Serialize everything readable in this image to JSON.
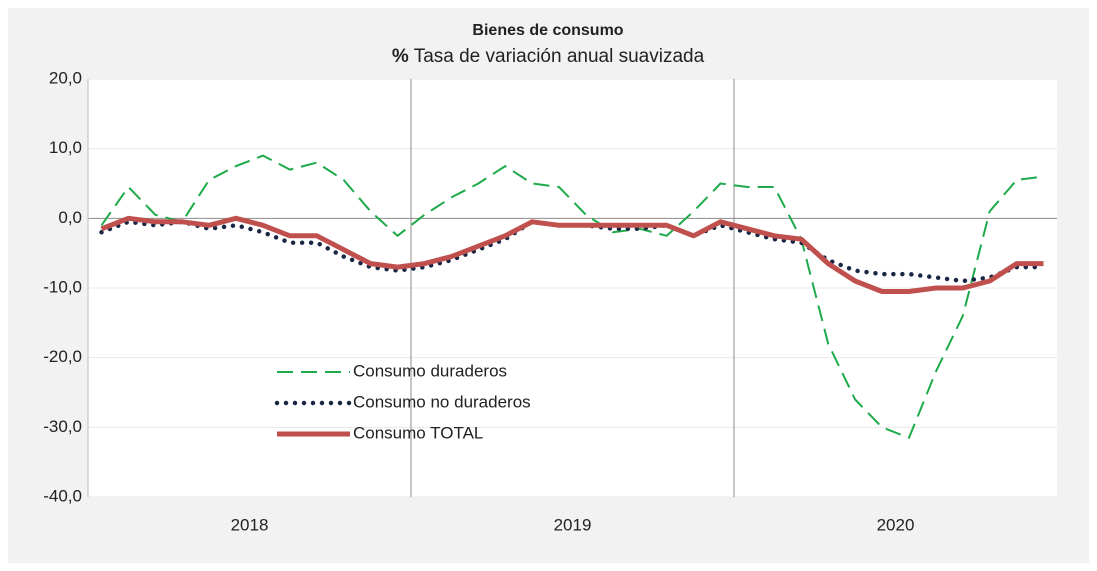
{
  "chart_data": {
    "type": "line",
    "title": "Bienes de consumo",
    "subtitle_unit": "%",
    "subtitle": "Tasa de variación anual suavizada",
    "groups": [
      "2018",
      "2019",
      "2020"
    ],
    "points_per_group": 12,
    "ylim": [
      -40,
      20
    ],
    "yticks": [
      {
        "value": 20,
        "label": "20,0"
      },
      {
        "value": 10,
        "label": "10,0"
      },
      {
        "value": 0,
        "label": "0,0"
      },
      {
        "value": -10,
        "label": "-10,0"
      },
      {
        "value": -20,
        "label": "-20,0"
      },
      {
        "value": -30,
        "label": "-30,0"
      },
      {
        "value": -40,
        "label": "-40,0"
      }
    ],
    "grid": true,
    "series": [
      {
        "name": "Consumo duraderos",
        "color": "#1eaa4a",
        "style": "dashed",
        "values": [
          -1,
          4.5,
          0.5,
          -0.5,
          5.5,
          7.5,
          9,
          7,
          8,
          5.5,
          1,
          -2.5,
          0.5,
          3,
          5,
          7.5,
          5,
          4.5,
          0.5,
          -2,
          -1.5,
          -2.5,
          1,
          5,
          4.5,
          4.5,
          -3,
          -18,
          -26,
          -30,
          -31.5,
          -22,
          -14,
          1,
          5.5,
          6
        ]
      },
      {
        "name": "Consumo no duraderos",
        "color": "#1a2744",
        "style": "dotted",
        "values": [
          -2,
          -0.5,
          -1,
          -0.5,
          -1.5,
          -1,
          -2,
          -3.5,
          -3.5,
          -5.5,
          -7,
          -7.5,
          -7,
          -6,
          -4.5,
          -3,
          -0.5,
          -1,
          -1,
          -1.5,
          -1.5,
          -1,
          -2.5,
          -1,
          -2,
          -3,
          -3.5,
          -6,
          -7.5,
          -8,
          -8,
          -8.5,
          -9,
          -8.5,
          -7,
          -7
        ]
      },
      {
        "name": "Consumo TOTAL",
        "color": "#c0504d",
        "style": "solid",
        "values": [
          -1.5,
          0,
          -0.5,
          -0.5,
          -1,
          0,
          -1,
          -2.5,
          -2.5,
          -4.5,
          -6.5,
          -7,
          -6.5,
          -5.5,
          -4,
          -2.5,
          -0.5,
          -1,
          -1,
          -1,
          -1,
          -1,
          -2.5,
          -0.5,
          -1.5,
          -2.5,
          -3,
          -6.5,
          -9,
          -10.5,
          -10.5,
          -10,
          -10,
          -9,
          -6.5,
          -6.5
        ]
      }
    ]
  }
}
